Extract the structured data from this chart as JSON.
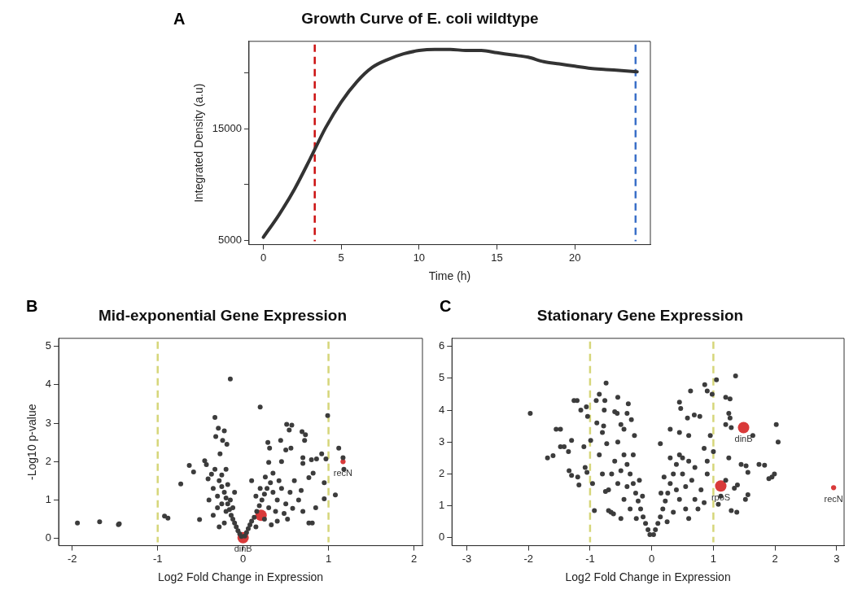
{
  "chart_data": [
    {
      "type": "line",
      "title": "Growth Curve of E. coli wildtype",
      "xlabel": "Time (h)",
      "ylabel": "Integrated Density (a.u)",
      "annotations": [
        "A"
      ],
      "x": [
        0,
        1,
        2,
        3,
        4,
        5,
        6,
        7,
        8,
        9,
        10,
        11,
        12,
        13,
        14,
        15,
        16,
        17,
        18,
        19,
        20,
        21,
        22,
        23,
        24
      ],
      "series": [
        {
          "color": "#333333",
          "values": [
            5300,
            7300,
            9600,
            12300,
            15100,
            17400,
            19200,
            20500,
            21200,
            21700,
            22000,
            22100,
            22100,
            22000,
            22000,
            21800,
            21600,
            21400,
            21000,
            20800,
            20600,
            20400,
            20300,
            20200,
            20100
          ]
        }
      ],
      "xlim": [
        -0.92,
        24.85
      ],
      "xticks": [
        0,
        5,
        10,
        15,
        20
      ],
      "ylim": [
        4640,
        22820
      ],
      "yticks": [
        5000,
        {
          "value": 10000,
          "label": null
        },
        15000,
        {
          "value": 20000,
          "label": null
        }
      ],
      "ref_lines": [
        {
          "axis": "x",
          "value": 3.3,
          "color": "#cc1111",
          "line_style": "dashed"
        },
        {
          "axis": "x",
          "value": 23.9,
          "color": "#3a6fc8",
          "line_style": "dashed"
        }
      ],
      "marker": "none",
      "line_style": "solid"
    },
    {
      "type": "scatter",
      "title": "Mid-exponential Gene Expression",
      "xlabel": "Log2 Fold Change in Expression",
      "ylabel": "-Log10 p-value",
      "annotations": [
        "B",
        {
          "text": "dinB",
          "x": 0,
          "y": 0.02
        },
        {
          "text": "recN",
          "x": 1.17,
          "y": 2.0
        }
      ],
      "series": [
        {
          "color": "#3c3c3c",
          "x": [
            -1.94,
            -1.68,
            -1.46,
            -1.45,
            -0.92,
            -0.88,
            -0.73,
            -0.63,
            -0.58,
            -0.51,
            -0.45,
            -0.43,
            -0.41,
            -0.33,
            -0.29,
            -0.32,
            -0.22,
            -0.24,
            -0.19,
            -0.27,
            -0.33,
            -0.37,
            -0.25,
            -0.2,
            -0.15,
            0.2,
            0.99,
            1.12,
            1.17,
            1.18,
            1.08,
            0.95,
            0.95,
            0.92,
            0.97,
            0.86,
            0.8,
            0.82,
            0.77,
            0.85,
            0.81,
            0.77,
            0.73,
            0.72,
            0.69,
            0.57,
            0.51,
            0.54,
            0.29,
            0.31,
            0.44,
            0.5,
            0.56,
            0.7,
            0.7,
            0.3,
            0.35,
            0.45,
            0.6,
            0.68,
            0.65,
            0.58,
            0.52,
            0.4,
            0.7,
            -0.02,
            -0.04,
            -0.06,
            -0.08,
            -0.1,
            -0.12,
            -0.14,
            -0.16,
            -0.18,
            -0.2,
            -0.22,
            -0.25,
            -0.28,
            -0.2,
            -0.25,
            -0.3,
            -0.15,
            -0.12,
            -0.1,
            -0.35,
            -0.3,
            -0.22,
            -0.4,
            -0.18,
            -0.28,
            -0.35,
            0.02,
            0.04,
            0.06,
            0.08,
            0.1,
            0.13,
            0.16,
            0.19,
            0.22,
            0.25,
            0.28,
            0.32,
            0.35,
            0.3,
            0.4,
            0.45,
            0.38,
            0.25,
            0.15,
            0.5,
            0.42,
            0.2,
            0.15,
            0.55,
            0.33,
            0.48,
            0.26,
            0.1
          ],
          "values": [
            0.4,
            0.43,
            0.36,
            0.38,
            0.58,
            0.53,
            1.42,
            1.9,
            1.73,
            0.49,
            2.02,
            1.92,
            1.55,
            3.15,
            2.87,
            2.65,
            2.8,
            2.55,
            2.45,
            2.2,
            1.8,
            1.67,
            1.65,
            1.8,
            4.15,
            3.42,
            3.2,
            2.35,
            2.1,
            1.8,
            1.13,
            1.03,
            1.45,
            2.2,
            2.07,
            2.07,
            2.05,
            1.7,
            1.58,
            0.8,
            0.4,
            0.4,
            2.7,
            2.55,
            2.78,
            2.95,
            2.97,
            2.82,
            2.5,
            2.35,
            2.55,
            2.3,
            2.35,
            2.1,
            1.95,
            1.98,
            1.7,
            2.0,
            1.5,
            1.25,
            1.0,
            0.78,
            0.5,
            0.45,
            0.7,
            0.05,
            0.12,
            0.2,
            0.3,
            0.4,
            0.5,
            0.6,
            0.75,
            0.9,
            1.05,
            1.2,
            1.35,
            1.5,
            0.7,
            0.9,
            1.1,
            1.0,
            0.8,
            1.2,
            1.3,
            0.8,
            0.4,
            1.0,
            1.4,
            0.3,
            0.6,
            0.06,
            0.15,
            0.25,
            0.35,
            0.45,
            0.55,
            0.7,
            0.85,
            1.0,
            1.15,
            1.3,
            1.45,
            1.2,
            0.8,
            1.0,
            1.3,
            0.7,
            0.5,
            0.3,
            0.9,
            1.5,
            1.3,
            1.1,
            1.2,
            0.35,
            0.65,
            1.6,
            1.5
          ]
        },
        {
          "type": "bubble",
          "color": "#d93a3a",
          "x": [
            0,
            0.21,
            1.17
          ],
          "values": [
            0.02,
            0.6,
            2.0
          ],
          "sizes": [
            1,
            1,
            0.2
          ]
        }
      ],
      "xlim": [
        -2.16,
        2.1
      ],
      "xticks": [
        -2,
        -1,
        0,
        1,
        2
      ],
      "ylim": [
        -0.19,
        5.21
      ],
      "yticks": [
        0,
        1,
        2,
        3,
        4,
        5
      ],
      "ref_lines": [
        {
          "axis": "x",
          "value": -1,
          "color": "#d6d67a",
          "line_style": "dashed"
        },
        {
          "axis": "x",
          "value": 1,
          "color": "#d6d67a",
          "line_style": "dashed"
        }
      ],
      "marker": "circle"
    },
    {
      "type": "scatter",
      "title": "Stationary Gene Expression",
      "xlabel": "Log2 Fold Change in Expression",
      "annotations": [
        "C",
        {
          "text": "dinB",
          "x": 1.49,
          "y": 3.45
        },
        {
          "text": "rpoS",
          "x": 1.12,
          "y": 1.62
        },
        {
          "text": "recN",
          "x": 2.95,
          "y": 1.57
        }
      ],
      "series": [
        {
          "color": "#3c3c3c",
          "x": [
            -1.97,
            -1.69,
            -1.6,
            -1.55,
            -1.48,
            -1.48,
            -1.42,
            -1.35,
            -1.34,
            -1.3,
            -1.3,
            -1.2,
            -1.18,
            -1.26,
            -1.21,
            -1.15,
            -1.1,
            -1.06,
            -1.04,
            -0.99,
            -0.96,
            -0.93,
            -0.9,
            -0.89,
            -0.85,
            -0.8,
            -0.78,
            -0.77,
            -0.76,
            -0.74,
            -0.73,
            -0.7,
            -0.66,
            -0.62,
            -0.6,
            -0.56,
            -0.55,
            -0.5,
            -0.4,
            -0.38,
            -0.33,
            -0.28,
            -1.08,
            -1.05,
            -0.75,
            -0.85,
            0.45,
            0.47,
            0.58,
            0.63,
            0.69,
            0.86,
            0.9,
            0.98,
            1.05,
            1.36,
            1.2,
            1.27,
            1.25,
            1.27,
            1.2,
            1.29,
            1.64,
            2.02,
            2.05,
            1.74,
            1.83,
            1.99,
            1.9,
            1.95,
            1.53,
            1.45,
            1.56,
            1.56,
            1.52,
            1.39,
            1.34,
            1.29,
            1.38,
            1.08,
            1.12,
            0.78,
            0.95,
            0.85,
            0.6,
            0.45,
            0.3,
            0.14,
            0.5,
            0.7,
            0.9,
            1.25,
            1.2,
            -0.03,
            -0.06,
            -0.1,
            -0.14,
            -0.18,
            -0.22,
            -0.26,
            -0.3,
            -0.35,
            -0.4,
            -0.45,
            -0.5,
            -0.55,
            -0.45,
            -0.35,
            -0.25,
            -0.6,
            -0.65,
            -0.5,
            -0.4,
            -0.3,
            -0.2,
            -0.15,
            -0.7,
            -0.8,
            -0.55,
            -0.45,
            0.03,
            0.06,
            0.1,
            0.14,
            0.18,
            0.22,
            0.26,
            0.3,
            0.35,
            0.4,
            0.45,
            0.5,
            0.55,
            0.45,
            0.35,
            0.25,
            0.6,
            0.65,
            0.55,
            0.4,
            0.3,
            0.2,
            0.15,
            0.7,
            0.8,
            0.75,
            0.85,
            0.6,
            1.0,
            0.9
          ],
          "values": [
            3.9,
            2.5,
            2.57,
            3.4,
            3.4,
            2.85,
            2.85,
            2.7,
            2.1,
            3.05,
            1.95,
            1.9,
            1.65,
            4.3,
            4.3,
            4.0,
            2.85,
            4.1,
            3.8,
            3.05,
            1.7,
            0.85,
            4.3,
            3.6,
            4.5,
            3.3,
            3.5,
            4.0,
            4.3,
            4.85,
            2.95,
            0.85,
            0.8,
            0.75,
            3.95,
            3.9,
            4.4,
            3.55,
            3.9,
            4.2,
            3.7,
            3.2,
            2.2,
            2.05,
            1.45,
            2.6,
            4.25,
            4.05,
            3.75,
            4.6,
            3.85,
            4.8,
            4.6,
            4.5,
            4.95,
            5.07,
            4.4,
            4.35,
            3.9,
            3.75,
            3.55,
            3.45,
            3.2,
            3.55,
            3.0,
            2.3,
            2.27,
            2.0,
            1.85,
            1.9,
            2.25,
            2.3,
            2.05,
            1.35,
            1.2,
            1.65,
            1.55,
            0.85,
            0.8,
            1.05,
            1.3,
            3.8,
            3.2,
            2.8,
            3.2,
            3.3,
            3.4,
            2.95,
            2.5,
            2.2,
            2.0,
            2.5,
            1.8,
            0.1,
            0.25,
            0.45,
            0.65,
            0.9,
            1.15,
            1.4,
            1.7,
            2.0,
            2.3,
            2.6,
            2.1,
            1.7,
            1.2,
            0.9,
            0.6,
            2.4,
            2.0,
            0.6,
            1.6,
            2.6,
            1.8,
            1.3,
            1.5,
            2.0,
            3.0,
            3.4,
            0.1,
            0.25,
            0.45,
            0.65,
            0.9,
            1.15,
            1.4,
            1.7,
            2.0,
            2.3,
            2.6,
            2.0,
            1.6,
            1.2,
            0.8,
            0.5,
            2.4,
            1.8,
            0.9,
            1.5,
            2.5,
            1.9,
            1.4,
            1.2,
            1.5,
            0.9,
            1.1,
            0.6,
            2.7,
            2.4
          ]
        },
        {
          "type": "bubble",
          "color": "#d93a3a",
          "x": [
            1.49,
            1.12,
            2.95
          ],
          "values": [
            3.45,
            1.62,
            1.57
          ],
          "sizes": [
            1,
            1,
            0.2
          ]
        }
      ],
      "xlim": [
        -3.24,
        3.12
      ],
      "xticks": [
        -3,
        -2,
        -1,
        0,
        1,
        2,
        3
      ],
      "ylim": [
        -0.25,
        6.25
      ],
      "yticks": [
        0,
        1,
        2,
        3,
        4,
        5,
        6
      ],
      "ref_lines": [
        {
          "axis": "x",
          "value": -1,
          "color": "#d6d67a",
          "line_style": "dashed"
        },
        {
          "axis": "x",
          "value": 1,
          "color": "#d6d67a",
          "line_style": "dashed"
        }
      ],
      "marker": "circle"
    }
  ]
}
